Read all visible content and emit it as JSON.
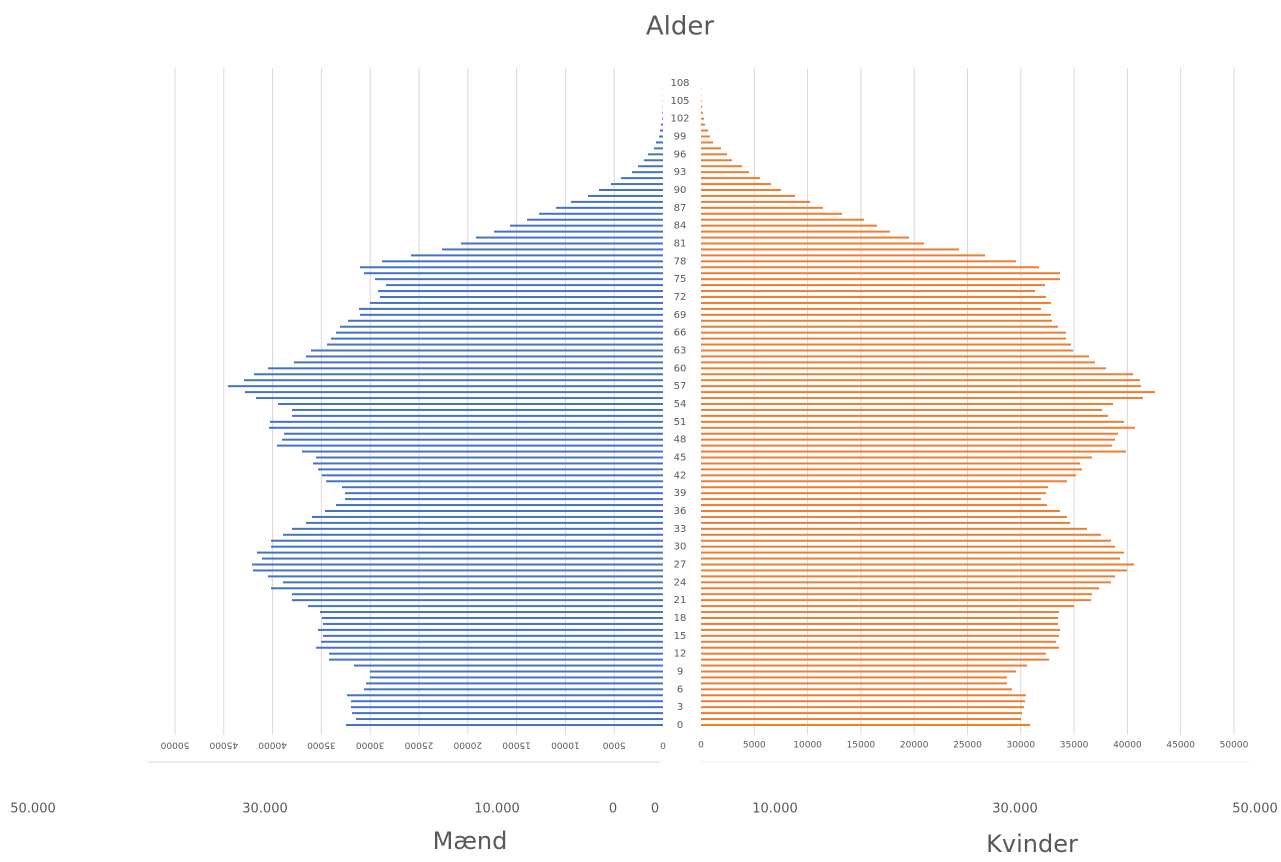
{
  "chart_data": {
    "type": "pyramid",
    "title": "Alder",
    "categories": [
      0,
      null,
      null,
      3,
      null,
      null,
      6,
      null,
      null,
      9,
      null,
      null,
      12,
      null,
      null,
      15,
      null,
      null,
      18,
      null,
      null,
      21,
      null,
      null,
      24,
      null,
      null,
      27,
      null,
      null,
      30,
      null,
      null,
      33,
      null,
      null,
      36,
      null,
      null,
      39,
      null,
      null,
      42,
      null,
      null,
      45,
      null,
      null,
      48,
      null,
      null,
      51,
      null,
      null,
      54,
      null,
      null,
      57,
      null,
      null,
      60,
      null,
      null,
      63,
      null,
      null,
      66,
      null,
      null,
      69,
      null,
      null,
      72,
      null,
      null,
      75,
      null,
      null,
      78,
      null,
      null,
      81,
      null,
      null,
      84,
      null,
      null,
      87,
      null,
      null,
      90,
      null,
      null,
      93,
      null,
      null,
      96,
      null,
      null,
      99,
      null,
      null,
      102,
      null,
      null,
      105,
      null,
      null,
      108
    ],
    "series": [
      {
        "name": "Mænd",
        "color": "#4472c4",
        "values": [
          32480,
          31450,
          31860,
          31970,
          31970,
          32380,
          30640,
          30430,
          30020,
          30020,
          31660,
          34220,
          34220,
          35550,
          35040,
          34840,
          35350,
          34840,
          34940,
          35140,
          36370,
          38010,
          38010,
          40160,
          38930,
          40470,
          42010,
          42110,
          41090,
          41600,
          40160,
          40160,
          38930,
          38010,
          36580,
          35960,
          34630,
          33500,
          32580,
          32580,
          32890,
          34530,
          34940,
          35350,
          35860,
          35550,
          36990,
          39550,
          39040,
          38830,
          40370,
          40270,
          38010,
          38010,
          39450,
          41700,
          42830,
          44570,
          42930,
          41910,
          40470,
          37810,
          36580,
          36070,
          34430,
          34020,
          33500,
          33090,
          32270,
          31050,
          31150,
          30020,
          29000,
          29200,
          28380,
          29510,
          30640,
          31050,
          28790,
          25820,
          22640,
          20700,
          19160,
          17320,
          15680,
          13930,
          12700,
          10960,
          9430,
          7680,
          6560,
          5330,
          4300,
          3180,
          2560,
          1950,
          1540,
          920,
          720,
          410,
          310,
          200,
          100,
          60,
          40,
          25,
          15,
          8,
          4
        ],
        "xlim": [
          0,
          50000
        ],
        "xticks": [
          0,
          5000,
          10000,
          15000,
          20000,
          25000,
          30000,
          35000,
          40000,
          45000,
          50000
        ],
        "x2lim": [
          0,
          50000
        ],
        "x2ticks": [
          {
            "value": 50000,
            "label": "50.000"
          },
          {
            "value": 30000,
            "label": "30.000"
          },
          {
            "value": 10000,
            "label": "10.000"
          },
          0
        ]
      },
      {
        "name": "Kvinder",
        "color": "#ed7d31",
        "values": [
          30860,
          30020,
          30110,
          30300,
          30390,
          30490,
          29170,
          28700,
          28700,
          29550,
          30580,
          32650,
          32360,
          33580,
          33300,
          33580,
          33680,
          33490,
          33490,
          33580,
          34990,
          36590,
          36680,
          37340,
          38460,
          38840,
          39960,
          40620,
          39310,
          39680,
          38840,
          38460,
          37520,
          36210,
          34620,
          34330,
          33680,
          32460,
          31890,
          32360,
          32550,
          34330,
          35180,
          35740,
          35550,
          36680,
          39870,
          38560,
          38840,
          39120,
          40710,
          39680,
          38180,
          37620,
          38650,
          41460,
          42590,
          41280,
          41180,
          40530,
          37990,
          36960,
          36400,
          34900,
          34710,
          34240,
          34240,
          33490,
          32930,
          32830,
          31890,
          32830,
          32360,
          31330,
          32270,
          33680,
          33680,
          31710,
          29550,
          26640,
          24200,
          20920,
          19510,
          17730,
          16510,
          15290,
          13230,
          11440,
          10230,
          8820,
          7500,
          6570,
          5530,
          4500,
          3850,
          2910,
          2440,
          1880,
          1130,
          840,
          660,
          380,
          280,
          180,
          110,
          60,
          30,
          15,
          8
        ],
        "xlim": [
          0,
          50000
        ],
        "xticks": [
          0,
          5000,
          10000,
          15000,
          20000,
          25000,
          30000,
          35000,
          40000,
          45000,
          50000
        ],
        "x2lim": [
          0,
          50000
        ],
        "x2ticks": [
          0,
          {
            "value": 10000,
            "label": "10.000"
          },
          {
            "value": 30000,
            "label": "30.000"
          },
          {
            "value": 50000,
            "label": "50.000"
          }
        ]
      }
    ],
    "grid": true
  }
}
